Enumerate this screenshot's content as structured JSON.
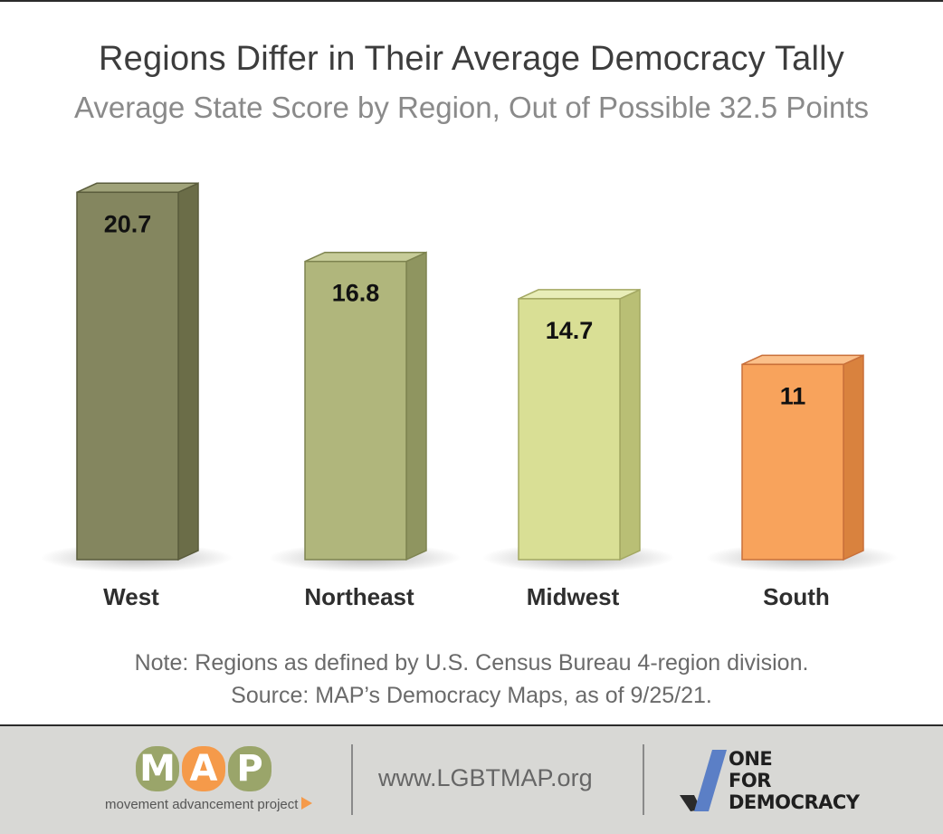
{
  "header": {
    "title": "Regions Differ in Their Average Democracy Tally",
    "subtitle": "Average State Score by Region, Out of Possible 32.5 Points"
  },
  "chart_data": {
    "type": "bar",
    "categories": [
      "West",
      "Northeast",
      "Midwest",
      "South"
    ],
    "values": [
      20.7,
      16.8,
      14.7,
      11
    ],
    "value_labels": [
      "20.7",
      "16.8",
      "14.7",
      "11"
    ],
    "title": "Regions Differ in Their Average Democracy Tally",
    "subtitle": "Average State Score by Region, Out of Possible 32.5 Points",
    "xlabel": "",
    "ylabel": "",
    "grid": false,
    "style": "3d-bars",
    "colors": [
      "#84865f",
      "#b0b67c",
      "#d9df95",
      "#f8a35c"
    ],
    "side_colors": [
      "#6b6d48",
      "#8f9560",
      "#b9bf75",
      "#d9823e"
    ],
    "top_colors": [
      "#a0a37a",
      "#c7cc99",
      "#e8edb8",
      "#fbc08a"
    ],
    "edge_colors": [
      "#5a5c3c",
      "#7e8450",
      "#a3a862",
      "#c9703a"
    ]
  },
  "notes": {
    "note": "Note: Regions as defined by U.S. Census Bureau 4-region division.",
    "source": "Source: MAP’s Democracy Maps, as of 9/25/21."
  },
  "footer": {
    "map_letters": [
      "M",
      "A",
      "P"
    ],
    "map_letter_colors": [
      "#9aa56a",
      "#f59a4a",
      "#9aa56a"
    ],
    "map_tagline": "movement advancement project",
    "url": "www.LGBTMAP.org",
    "ofd_lines": [
      "ONE",
      "FOR",
      "DEMOCRACY"
    ],
    "ofd_colors": {
      "blue": "#5b7fc6",
      "dark": "#2b2b2b"
    }
  }
}
